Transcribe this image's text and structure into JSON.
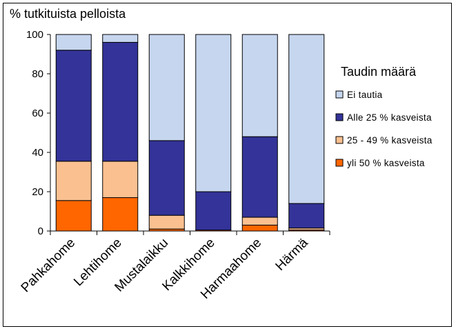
{
  "chart_data": {
    "type": "bar",
    "stacked": true,
    "ylabel": "% tutkituista pelloista",
    "ylim": [
      0,
      100
    ],
    "yticks": [
      0,
      20,
      40,
      60,
      80,
      100
    ],
    "grid": false,
    "categories": [
      "Pahkahome",
      "Lehtihome",
      "Mustalaikku",
      "Kalkkihome",
      "Harmaahome",
      "Härmä"
    ],
    "legend_title": "Taudin määrä",
    "legend_position": "right",
    "series": [
      {
        "name": "yli 50 % kasveista",
        "color": "#FF6600",
        "values": [
          15.5,
          17,
          1,
          0.5,
          3,
          0.5
        ]
      },
      {
        "name": "25 - 49 % kasveista",
        "color": "#FAC090",
        "values": [
          20,
          18.5,
          7,
          0,
          4,
          1
        ]
      },
      {
        "name": "Alle 25 % kasveista",
        "color": "#333399",
        "values": [
          56.5,
          60.5,
          38,
          19.5,
          41,
          12.5
        ]
      },
      {
        "name": "Ei tautia",
        "color": "#C6D6EF",
        "values": [
          8,
          4,
          54,
          80,
          52,
          86
        ]
      }
    ],
    "legend_order": [
      3,
      2,
      1,
      0
    ]
  }
}
